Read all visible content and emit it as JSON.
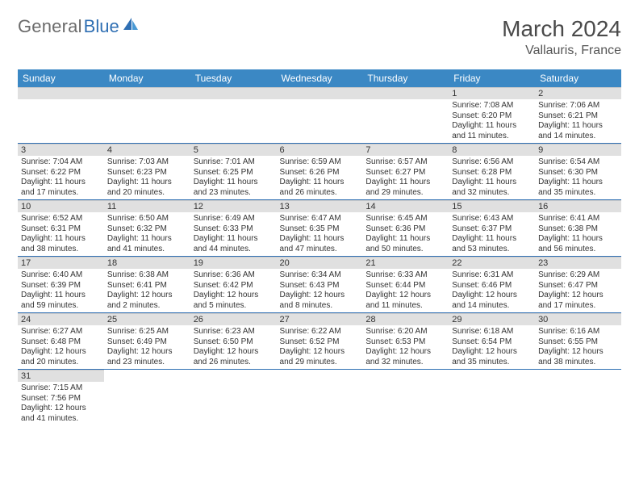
{
  "brand": {
    "general": "General",
    "blue": "Blue"
  },
  "title": {
    "month": "March 2024",
    "location": "Vallauris, France"
  },
  "colors": {
    "header_bg": "#3b88c4",
    "header_text": "#ffffff",
    "day_border": "#2f6fb3",
    "daynum_bg": "#e0e0e0",
    "brand_blue": "#2f6fb3",
    "brand_gray": "#6b6b6b"
  },
  "weekdays": [
    "Sunday",
    "Monday",
    "Tuesday",
    "Wednesday",
    "Thursday",
    "Friday",
    "Saturday"
  ],
  "weeks": [
    [
      {
        "day": "",
        "sunrise": "",
        "sunset": "",
        "daylight": ""
      },
      {
        "day": "",
        "sunrise": "",
        "sunset": "",
        "daylight": ""
      },
      {
        "day": "",
        "sunrise": "",
        "sunset": "",
        "daylight": ""
      },
      {
        "day": "",
        "sunrise": "",
        "sunset": "",
        "daylight": ""
      },
      {
        "day": "",
        "sunrise": "",
        "sunset": "",
        "daylight": ""
      },
      {
        "day": "1",
        "sunrise": "Sunrise: 7:08 AM",
        "sunset": "Sunset: 6:20 PM",
        "daylight": "Daylight: 11 hours and 11 minutes."
      },
      {
        "day": "2",
        "sunrise": "Sunrise: 7:06 AM",
        "sunset": "Sunset: 6:21 PM",
        "daylight": "Daylight: 11 hours and 14 minutes."
      }
    ],
    [
      {
        "day": "3",
        "sunrise": "Sunrise: 7:04 AM",
        "sunset": "Sunset: 6:22 PM",
        "daylight": "Daylight: 11 hours and 17 minutes."
      },
      {
        "day": "4",
        "sunrise": "Sunrise: 7:03 AM",
        "sunset": "Sunset: 6:23 PM",
        "daylight": "Daylight: 11 hours and 20 minutes."
      },
      {
        "day": "5",
        "sunrise": "Sunrise: 7:01 AM",
        "sunset": "Sunset: 6:25 PM",
        "daylight": "Daylight: 11 hours and 23 minutes."
      },
      {
        "day": "6",
        "sunrise": "Sunrise: 6:59 AM",
        "sunset": "Sunset: 6:26 PM",
        "daylight": "Daylight: 11 hours and 26 minutes."
      },
      {
        "day": "7",
        "sunrise": "Sunrise: 6:57 AM",
        "sunset": "Sunset: 6:27 PM",
        "daylight": "Daylight: 11 hours and 29 minutes."
      },
      {
        "day": "8",
        "sunrise": "Sunrise: 6:56 AM",
        "sunset": "Sunset: 6:28 PM",
        "daylight": "Daylight: 11 hours and 32 minutes."
      },
      {
        "day": "9",
        "sunrise": "Sunrise: 6:54 AM",
        "sunset": "Sunset: 6:30 PM",
        "daylight": "Daylight: 11 hours and 35 minutes."
      }
    ],
    [
      {
        "day": "10",
        "sunrise": "Sunrise: 6:52 AM",
        "sunset": "Sunset: 6:31 PM",
        "daylight": "Daylight: 11 hours and 38 minutes."
      },
      {
        "day": "11",
        "sunrise": "Sunrise: 6:50 AM",
        "sunset": "Sunset: 6:32 PM",
        "daylight": "Daylight: 11 hours and 41 minutes."
      },
      {
        "day": "12",
        "sunrise": "Sunrise: 6:49 AM",
        "sunset": "Sunset: 6:33 PM",
        "daylight": "Daylight: 11 hours and 44 minutes."
      },
      {
        "day": "13",
        "sunrise": "Sunrise: 6:47 AM",
        "sunset": "Sunset: 6:35 PM",
        "daylight": "Daylight: 11 hours and 47 minutes."
      },
      {
        "day": "14",
        "sunrise": "Sunrise: 6:45 AM",
        "sunset": "Sunset: 6:36 PM",
        "daylight": "Daylight: 11 hours and 50 minutes."
      },
      {
        "day": "15",
        "sunrise": "Sunrise: 6:43 AM",
        "sunset": "Sunset: 6:37 PM",
        "daylight": "Daylight: 11 hours and 53 minutes."
      },
      {
        "day": "16",
        "sunrise": "Sunrise: 6:41 AM",
        "sunset": "Sunset: 6:38 PM",
        "daylight": "Daylight: 11 hours and 56 minutes."
      }
    ],
    [
      {
        "day": "17",
        "sunrise": "Sunrise: 6:40 AM",
        "sunset": "Sunset: 6:39 PM",
        "daylight": "Daylight: 11 hours and 59 minutes."
      },
      {
        "day": "18",
        "sunrise": "Sunrise: 6:38 AM",
        "sunset": "Sunset: 6:41 PM",
        "daylight": "Daylight: 12 hours and 2 minutes."
      },
      {
        "day": "19",
        "sunrise": "Sunrise: 6:36 AM",
        "sunset": "Sunset: 6:42 PM",
        "daylight": "Daylight: 12 hours and 5 minutes."
      },
      {
        "day": "20",
        "sunrise": "Sunrise: 6:34 AM",
        "sunset": "Sunset: 6:43 PM",
        "daylight": "Daylight: 12 hours and 8 minutes."
      },
      {
        "day": "21",
        "sunrise": "Sunrise: 6:33 AM",
        "sunset": "Sunset: 6:44 PM",
        "daylight": "Daylight: 12 hours and 11 minutes."
      },
      {
        "day": "22",
        "sunrise": "Sunrise: 6:31 AM",
        "sunset": "Sunset: 6:46 PM",
        "daylight": "Daylight: 12 hours and 14 minutes."
      },
      {
        "day": "23",
        "sunrise": "Sunrise: 6:29 AM",
        "sunset": "Sunset: 6:47 PM",
        "daylight": "Daylight: 12 hours and 17 minutes."
      }
    ],
    [
      {
        "day": "24",
        "sunrise": "Sunrise: 6:27 AM",
        "sunset": "Sunset: 6:48 PM",
        "daylight": "Daylight: 12 hours and 20 minutes."
      },
      {
        "day": "25",
        "sunrise": "Sunrise: 6:25 AM",
        "sunset": "Sunset: 6:49 PM",
        "daylight": "Daylight: 12 hours and 23 minutes."
      },
      {
        "day": "26",
        "sunrise": "Sunrise: 6:23 AM",
        "sunset": "Sunset: 6:50 PM",
        "daylight": "Daylight: 12 hours and 26 minutes."
      },
      {
        "day": "27",
        "sunrise": "Sunrise: 6:22 AM",
        "sunset": "Sunset: 6:52 PM",
        "daylight": "Daylight: 12 hours and 29 minutes."
      },
      {
        "day": "28",
        "sunrise": "Sunrise: 6:20 AM",
        "sunset": "Sunset: 6:53 PM",
        "daylight": "Daylight: 12 hours and 32 minutes."
      },
      {
        "day": "29",
        "sunrise": "Sunrise: 6:18 AM",
        "sunset": "Sunset: 6:54 PM",
        "daylight": "Daylight: 12 hours and 35 minutes."
      },
      {
        "day": "30",
        "sunrise": "Sunrise: 6:16 AM",
        "sunset": "Sunset: 6:55 PM",
        "daylight": "Daylight: 12 hours and 38 minutes."
      }
    ],
    [
      {
        "day": "31",
        "sunrise": "Sunrise: 7:15 AM",
        "sunset": "Sunset: 7:56 PM",
        "daylight": "Daylight: 12 hours and 41 minutes."
      },
      {
        "day": "",
        "sunrise": "",
        "sunset": "",
        "daylight": ""
      },
      {
        "day": "",
        "sunrise": "",
        "sunset": "",
        "daylight": ""
      },
      {
        "day": "",
        "sunrise": "",
        "sunset": "",
        "daylight": ""
      },
      {
        "day": "",
        "sunrise": "",
        "sunset": "",
        "daylight": ""
      },
      {
        "day": "",
        "sunrise": "",
        "sunset": "",
        "daylight": ""
      },
      {
        "day": "",
        "sunrise": "",
        "sunset": "",
        "daylight": ""
      }
    ]
  ]
}
